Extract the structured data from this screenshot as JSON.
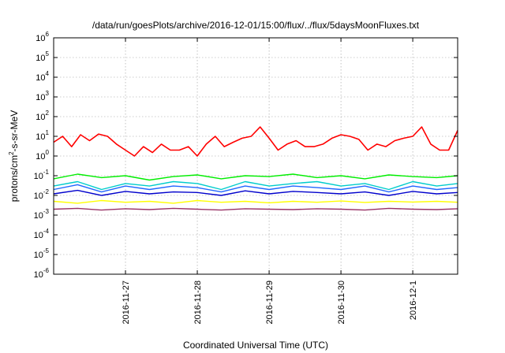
{
  "chart_data": {
    "type": "line",
    "title": "/data/run/goesPlots/archive/2016-12-01/15:00/flux/../flux/5daysMoonFluxes.txt",
    "xlabel": "Coordinated Universal Time (UTC)",
    "ylabel": {
      "base": "protons/cm",
      "sup": "2",
      "rest": "-s-sr-MeV"
    },
    "yscale": "log",
    "ylim": [
      1e-06,
      1000000.0
    ],
    "yticks": [
      {
        "base": "10",
        "exp": "6",
        "value": 1000000.0
      },
      {
        "base": "10",
        "exp": "5",
        "value": 100000.0
      },
      {
        "base": "10",
        "exp": "4",
        "value": 10000.0
      },
      {
        "base": "10",
        "exp": "3",
        "value": 1000.0
      },
      {
        "base": "10",
        "exp": "2",
        "value": 100.0
      },
      {
        "base": "10",
        "exp": "1",
        "value": 10.0
      },
      {
        "base": "10",
        "exp": "0",
        "value": 1.0
      },
      {
        "base": "10",
        "exp": "-1",
        "value": 0.1
      },
      {
        "base": "10",
        "exp": "-2",
        "value": 0.01
      },
      {
        "base": "10",
        "exp": "-3",
        "value": 0.001
      },
      {
        "base": "10",
        "exp": "-4",
        "value": 0.0001
      },
      {
        "base": "10",
        "exp": "-5",
        "value": 1e-05
      },
      {
        "base": "10",
        "exp": "-6",
        "value": 1e-06
      }
    ],
    "xlim": [
      "2016-11-26 00:00",
      "2016-12-01 15:00"
    ],
    "xticks": [
      "2016-11-27",
      "2016-11-28",
      "2016-11-29",
      "2016-11-30",
      "2016-12-1"
    ],
    "grid": true,
    "legend": "none",
    "series": [
      {
        "color": "#ff0000",
        "x": [
          "2016-11-26 00:00",
          "2016-11-26 03:00",
          "2016-11-26 06:00",
          "2016-11-26 09:00",
          "2016-11-26 12:00",
          "2016-11-26 15:00",
          "2016-11-26 18:00",
          "2016-11-26 21:00",
          "2016-11-27 00:00",
          "2016-11-27 03:00",
          "2016-11-27 06:00",
          "2016-11-27 09:00",
          "2016-11-27 12:00",
          "2016-11-27 15:00",
          "2016-11-27 18:00",
          "2016-11-27 21:00",
          "2016-11-28 00:00",
          "2016-11-28 03:00",
          "2016-11-28 06:00",
          "2016-11-28 09:00",
          "2016-11-28 12:00",
          "2016-11-28 15:00",
          "2016-11-28 18:00",
          "2016-11-28 21:00",
          "2016-11-29 00:00",
          "2016-11-29 03:00",
          "2016-11-29 06:00",
          "2016-11-29 09:00",
          "2016-11-29 12:00",
          "2016-11-29 15:00",
          "2016-11-29 18:00",
          "2016-11-29 21:00",
          "2016-11-30 00:00",
          "2016-11-30 03:00",
          "2016-11-30 06:00",
          "2016-11-30 09:00",
          "2016-11-30 12:00",
          "2016-11-30 15:00",
          "2016-11-30 18:00",
          "2016-11-30 21:00",
          "2016-12-01 00:00",
          "2016-12-01 03:00",
          "2016-12-01 06:00",
          "2016-12-01 09:00",
          "2016-12-01 12:00",
          "2016-12-01 15:00"
        ],
        "y": [
          5,
          10,
          3,
          12,
          6,
          13,
          10,
          4,
          2,
          1,
          3,
          1.5,
          4,
          2,
          2,
          3,
          1,
          4,
          10,
          3,
          5,
          8,
          10,
          30,
          8,
          2,
          4,
          6,
          3,
          3,
          4,
          8,
          12,
          10,
          7,
          2,
          4,
          3,
          6,
          8,
          10,
          30,
          4,
          2,
          2,
          20
        ]
      },
      {
        "color": "#00ee00",
        "x": [
          "2016-11-26 00:00",
          "2016-11-26 08:00",
          "2016-11-26 16:00",
          "2016-11-27 00:00",
          "2016-11-27 08:00",
          "2016-11-27 16:00",
          "2016-11-28 00:00",
          "2016-11-28 08:00",
          "2016-11-28 16:00",
          "2016-11-29 00:00",
          "2016-11-29 08:00",
          "2016-11-29 16:00",
          "2016-11-30 00:00",
          "2016-11-30 08:00",
          "2016-11-30 16:00",
          "2016-12-01 00:00",
          "2016-12-01 08:00",
          "2016-12-01 15:00"
        ],
        "y": [
          0.07,
          0.12,
          0.08,
          0.1,
          0.06,
          0.09,
          0.11,
          0.07,
          0.1,
          0.09,
          0.12,
          0.08,
          0.1,
          0.07,
          0.11,
          0.09,
          0.08,
          0.1
        ]
      },
      {
        "color": "#00cccc",
        "x": [
          "2016-11-26 00:00",
          "2016-11-26 08:00",
          "2016-11-26 16:00",
          "2016-11-27 00:00",
          "2016-11-27 08:00",
          "2016-11-27 16:00",
          "2016-11-28 00:00",
          "2016-11-28 08:00",
          "2016-11-28 16:00",
          "2016-11-29 00:00",
          "2016-11-29 08:00",
          "2016-11-29 16:00",
          "2016-11-30 00:00",
          "2016-11-30 08:00",
          "2016-11-30 16:00",
          "2016-12-01 00:00",
          "2016-12-01 08:00",
          "2016-12-01 15:00"
        ],
        "y": [
          0.03,
          0.05,
          0.02,
          0.04,
          0.03,
          0.05,
          0.04,
          0.02,
          0.05,
          0.03,
          0.04,
          0.05,
          0.03,
          0.04,
          0.02,
          0.05,
          0.03,
          0.04
        ]
      },
      {
        "color": "#2266ff",
        "x": [
          "2016-11-26 00:00",
          "2016-11-26 08:00",
          "2016-11-26 16:00",
          "2016-11-27 00:00",
          "2016-11-27 08:00",
          "2016-11-27 16:00",
          "2016-11-28 00:00",
          "2016-11-28 08:00",
          "2016-11-28 16:00",
          "2016-11-29 00:00",
          "2016-11-29 08:00",
          "2016-11-29 16:00",
          "2016-11-30 00:00",
          "2016-11-30 08:00",
          "2016-11-30 16:00",
          "2016-12-01 00:00",
          "2016-12-01 08:00",
          "2016-12-01 15:00"
        ],
        "y": [
          0.02,
          0.035,
          0.015,
          0.03,
          0.02,
          0.03,
          0.025,
          0.015,
          0.03,
          0.02,
          0.03,
          0.025,
          0.02,
          0.03,
          0.015,
          0.03,
          0.02,
          0.025
        ]
      },
      {
        "color": "#0000cc",
        "x": [
          "2016-11-26 00:00",
          "2016-11-26 08:00",
          "2016-11-26 16:00",
          "2016-11-27 00:00",
          "2016-11-27 08:00",
          "2016-11-27 16:00",
          "2016-11-28 00:00",
          "2016-11-28 08:00",
          "2016-11-28 16:00",
          "2016-11-29 00:00",
          "2016-11-29 08:00",
          "2016-11-29 16:00",
          "2016-11-30 00:00",
          "2016-11-30 08:00",
          "2016-11-30 16:00",
          "2016-12-01 00:00",
          "2016-12-01 08:00",
          "2016-12-01 15:00"
        ],
        "y": [
          0.012,
          0.018,
          0.01,
          0.016,
          0.012,
          0.015,
          0.014,
          0.01,
          0.017,
          0.012,
          0.016,
          0.014,
          0.012,
          0.015,
          0.01,
          0.016,
          0.012,
          0.014
        ]
      },
      {
        "color": "#ffff00",
        "x": [
          "2016-11-26 00:00",
          "2016-11-26 08:00",
          "2016-11-26 16:00",
          "2016-11-27 00:00",
          "2016-11-27 08:00",
          "2016-11-27 16:00",
          "2016-11-28 00:00",
          "2016-11-28 08:00",
          "2016-11-28 16:00",
          "2016-11-29 00:00",
          "2016-11-29 08:00",
          "2016-11-29 16:00",
          "2016-11-30 00:00",
          "2016-11-30 08:00",
          "2016-11-30 16:00",
          "2016-12-01 00:00",
          "2016-12-01 08:00",
          "2016-12-01 15:00"
        ],
        "y": [
          0.005,
          0.004,
          0.0055,
          0.0045,
          0.005,
          0.004,
          0.0055,
          0.0045,
          0.005,
          0.0042,
          0.005,
          0.0045,
          0.0052,
          0.0044,
          0.005,
          0.0046,
          0.005,
          0.0045
        ]
      },
      {
        "color": "#993366",
        "x": [
          "2016-11-26 00:00",
          "2016-11-26 08:00",
          "2016-11-26 16:00",
          "2016-11-27 00:00",
          "2016-11-27 08:00",
          "2016-11-27 16:00",
          "2016-11-28 00:00",
          "2016-11-28 08:00",
          "2016-11-28 16:00",
          "2016-11-29 00:00",
          "2016-11-29 08:00",
          "2016-11-29 16:00",
          "2016-11-30 00:00",
          "2016-11-30 08:00",
          "2016-11-30 16:00",
          "2016-12-01 00:00",
          "2016-12-01 08:00",
          "2016-12-01 15:00"
        ],
        "y": [
          0.002,
          0.0022,
          0.0018,
          0.0021,
          0.0019,
          0.0022,
          0.002,
          0.0018,
          0.0021,
          0.002,
          0.0019,
          0.0021,
          0.002,
          0.0018,
          0.0022,
          0.002,
          0.0019,
          0.0021
        ]
      }
    ]
  }
}
